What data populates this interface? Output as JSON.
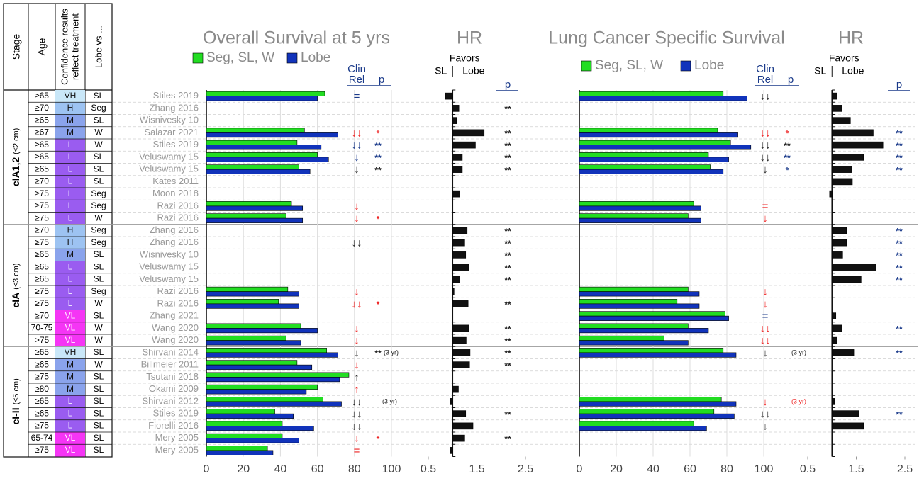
{
  "table": {
    "headers": {
      "stage": "Stage",
      "age": "Age",
      "confidence": [
        "Confidence results",
        "reflect treatment"
      ],
      "lobe_vs": "Lobe vs ..."
    },
    "confidence_colors": {
      "VH": "#c9e7f8",
      "H": "#9dc3f2",
      "M": "#8aa3ec",
      "L": "#9a5cf0",
      "VL": "#f535f5"
    },
    "confidence_text_colors": {
      "VH": "#111",
      "H": "#111",
      "M": "#111",
      "L": "#f4f0ff",
      "VL": "#fff0ff"
    },
    "stages": [
      {
        "label": "cIA1,2",
        "note": "(≤2 cm)",
        "rows": [
          [
            "≥65",
            "VH",
            "SL"
          ],
          [
            "≥70",
            "H",
            "Seg"
          ],
          [
            "≥65",
            "M",
            "SL"
          ],
          [
            "≥67",
            "M",
            "W"
          ],
          [
            "≥65",
            "L",
            "W"
          ],
          [
            "≥65",
            "L",
            "SL"
          ],
          [
            "≥65",
            "L",
            "SL"
          ],
          [
            "≥70",
            "L",
            "SL"
          ],
          [
            "≥75",
            "L",
            "Seg"
          ],
          [
            "≥75",
            "L",
            "Seg"
          ],
          [
            "≥75",
            "L",
            "W"
          ]
        ]
      },
      {
        "label": "cIA",
        "note": "(≤3 cm)",
        "rows": [
          [
            "≥70",
            "H",
            "Seg"
          ],
          [
            "≥75",
            "H",
            "Seg"
          ],
          [
            "≥65",
            "M",
            "SL"
          ],
          [
            "≥65",
            "L",
            "SL"
          ],
          [
            "≥65",
            "L",
            "SL"
          ],
          [
            "≥75",
            "L",
            "Seg"
          ],
          [
            "≥75",
            "L",
            "W"
          ],
          [
            "≥70",
            "VL",
            "SL"
          ],
          [
            "70-75",
            "VL",
            "W"
          ],
          [
            ">75",
            "VL",
            "W"
          ]
        ]
      },
      {
        "label": "cI-II",
        "note": "(≤5 cm)",
        "rows": [
          [
            "≥65",
            "VH",
            "SL"
          ],
          [
            "≥65",
            "M",
            "W"
          ],
          [
            "≥75",
            "M",
            "SL"
          ],
          [
            "≥80",
            "M",
            "SL"
          ],
          [
            "≥65",
            "L",
            "SL"
          ],
          [
            "≥65",
            "L",
            "SL"
          ],
          [
            "≥75",
            "L",
            "SL"
          ],
          [
            "65-74",
            "VL",
            "SL"
          ],
          [
            "≥75",
            "VL",
            "SL"
          ]
        ]
      }
    ]
  },
  "chart_data": [
    {
      "type": "bar",
      "title": "Overall Survival at 5 yrs",
      "legend": true,
      "grid": true,
      "categories": [
        "Stiles 2019",
        "Zhang 2016",
        "Wisnivesky 10",
        "Salazar 2021",
        "Stiles 2019",
        "Veluswamy 15",
        "Veluswamy 15",
        "Kates 2011",
        "Moon 2018",
        "Razi 2016",
        "Razi 2016",
        "Zhang 2016",
        "Zhang 2016",
        "Wisnivesky 10",
        "Veluswamy 15",
        "Veluswamy 15",
        "Razi 2016",
        "Razi 2016",
        "Zhang 2021",
        "Wang 2020",
        "Wang 2020",
        "Shirvani 2014",
        "Billmeier 2011",
        "Tsutani 2018",
        "Okami 2009",
        "Shirvani 2012",
        "Stiles 2019",
        "Fiorelli 2016",
        "Mery 2005",
        "Mery 2005"
      ],
      "series": [
        {
          "name": "Seg, SL, W",
          "color": "#22dd22",
          "values": [
            64,
            null,
            null,
            53,
            49,
            60,
            50,
            null,
            null,
            46,
            43,
            null,
            null,
            null,
            null,
            null,
            44,
            39,
            null,
            51,
            43,
            65,
            49,
            77,
            60,
            63,
            37,
            41,
            41,
            33
          ]
        },
        {
          "name": "Lobe",
          "color": "#1133bb",
          "values": [
            60,
            null,
            null,
            71,
            62,
            66,
            56,
            null,
            null,
            52,
            52,
            null,
            null,
            null,
            null,
            null,
            50,
            50,
            null,
            60,
            51,
            71,
            57,
            72,
            54,
            73,
            47,
            58,
            50,
            36
          ]
        }
      ],
      "xlim": [
        0,
        100
      ],
      "xticks": [
        0,
        20,
        40,
        60,
        80,
        100
      ],
      "clin_header": [
        "Clin",
        "Rel"
      ],
      "p_header": "p",
      "clin_rel": [
        {
          "text": "=",
          "color": "#1a3a8a"
        },
        null,
        null,
        {
          "text": "↓↓",
          "color": "#ee2222"
        },
        {
          "text": "↓↓",
          "color": "#1a3a8a"
        },
        {
          "text": "↓",
          "color": "#1a3a8a"
        },
        {
          "text": "↓",
          "color": "#222222"
        },
        null,
        null,
        {
          "text": "↓",
          "color": "#ee2222"
        },
        {
          "text": "↓",
          "color": "#ee2222"
        },
        null,
        {
          "text": "↓↓",
          "color": "#222222"
        },
        null,
        null,
        null,
        {
          "text": "↓",
          "color": "#ee2222"
        },
        {
          "text": "↓↓",
          "color": "#ee2222"
        },
        null,
        {
          "text": "↓",
          "color": "#ee2222"
        },
        {
          "text": "↓",
          "color": "#ee2222"
        },
        {
          "text": "↓",
          "color": "#222222"
        },
        {
          "text": "↓",
          "color": "#ee2222"
        },
        {
          "text": "↑",
          "color": "#222222"
        },
        {
          "text": "↑",
          "color": "#ee2222"
        },
        {
          "text": "↓↓",
          "color": "#222222"
        },
        {
          "text": "↓↓",
          "color": "#222222"
        },
        {
          "text": "↓↓",
          "color": "#222222"
        },
        {
          "text": "↓",
          "color": "#ee2222"
        },
        {
          "text": "=",
          "color": "#ee2222"
        }
      ],
      "p": [
        null,
        null,
        null,
        {
          "text": "*",
          "color": "#ee2222"
        },
        {
          "text": "**",
          "color": "#1a3a8a"
        },
        {
          "text": "**",
          "color": "#1a3a8a"
        },
        {
          "text": "**",
          "color": "#222222"
        },
        null,
        null,
        null,
        {
          "text": "*",
          "color": "#ee2222"
        },
        null,
        null,
        null,
        null,
        null,
        null,
        {
          "text": "*",
          "color": "#ee2222"
        },
        null,
        null,
        null,
        {
          "text": "**",
          "note": "(3 yr)",
          "color": "#222222"
        },
        null,
        null,
        null,
        {
          "note": "(3 yr)",
          "color": "#222222"
        },
        null,
        null,
        {
          "text": "*",
          "color": "#ee2222"
        },
        null
      ]
    },
    {
      "type": "bar",
      "title": "HR",
      "reference": 1,
      "grid": false,
      "favors": {
        "title": "Favors",
        "left": "SL",
        "right": "Lobe"
      },
      "series": [
        {
          "color": "#111111",
          "values": [
            0.85,
            1.13,
            1.08,
            1.65,
            1.47,
            1.2,
            1.2,
            null,
            1.15,
            null,
            null,
            1.3,
            1.25,
            1.27,
            1.33,
            1.15,
            1.03,
            1.32,
            null,
            1.33,
            1.28,
            1.36,
            1.35,
            null,
            1.12,
            0.95,
            1.27,
            1.42,
            1.25,
            0.95
          ]
        }
      ],
      "xlim": [
        0.5,
        2.5
      ],
      "xticks": [
        0.5,
        1.5,
        2.5
      ],
      "p_header": "p",
      "p_color": "#222222",
      "p": [
        null,
        "**",
        null,
        "**",
        "**",
        "**",
        "**",
        null,
        null,
        null,
        null,
        "**",
        "**",
        "**",
        "**",
        "**",
        null,
        "**",
        null,
        "**",
        "**",
        "**",
        "**",
        null,
        null,
        null,
        "**",
        null,
        "**",
        null
      ]
    },
    {
      "type": "bar",
      "title": "Lung Cancer Specific Survival",
      "legend": true,
      "grid": true,
      "series": [
        {
          "name": "Seg, SL, W",
          "color": "#22dd22",
          "values": [
            78,
            null,
            null,
            75,
            82,
            70,
            71,
            null,
            null,
            62,
            59,
            null,
            null,
            null,
            null,
            null,
            59,
            53,
            79,
            59,
            46,
            78,
            null,
            null,
            null,
            77,
            73,
            62,
            null,
            null
          ]
        },
        {
          "name": "Lobe",
          "color": "#1133bb",
          "values": [
            91,
            null,
            null,
            86,
            93,
            81,
            78,
            null,
            null,
            66,
            66,
            null,
            null,
            null,
            null,
            null,
            65,
            65,
            81,
            70,
            59,
            85,
            null,
            null,
            null,
            85,
            84,
            69,
            null,
            null
          ]
        }
      ],
      "xlim": [
        0,
        100
      ],
      "xticks": [
        0,
        20,
        40,
        60,
        80,
        100
      ],
      "clin_header": [
        "Clin",
        "Rel"
      ],
      "p_header": "p",
      "clin_rel": [
        {
          "text": "↓↓",
          "color": "#222222"
        },
        null,
        null,
        {
          "text": "↓↓",
          "color": "#ee2222"
        },
        {
          "text": "↓↓",
          "color": "#222222"
        },
        {
          "text": "↓↓",
          "color": "#222222"
        },
        {
          "text": "↓",
          "color": "#222222"
        },
        null,
        null,
        {
          "text": "=",
          "color": "#ee2222"
        },
        {
          "text": "↓",
          "color": "#ee2222"
        },
        null,
        null,
        null,
        null,
        null,
        {
          "text": "↓",
          "color": "#ee2222"
        },
        {
          "text": "↓",
          "color": "#ee2222"
        },
        {
          "text": "=",
          "color": "#1a3a8a"
        },
        {
          "text": "↓↓",
          "color": "#ee2222"
        },
        {
          "text": "↓↓",
          "color": "#ee2222"
        },
        {
          "text": "↓",
          "color": "#222222"
        },
        null,
        null,
        null,
        {
          "text": "↓",
          "color": "#ee2222"
        },
        {
          "text": "↓↓",
          "color": "#222222"
        },
        {
          "text": "↓",
          "color": "#222222"
        },
        null,
        null
      ],
      "p": [
        null,
        null,
        null,
        {
          "text": "*",
          "color": "#ee2222"
        },
        {
          "text": "**",
          "color": "#222222"
        },
        {
          "text": "**",
          "color": "#1a3a8a"
        },
        {
          "text": "*",
          "color": "#1a3a8a"
        },
        null,
        null,
        null,
        null,
        null,
        null,
        null,
        null,
        null,
        null,
        null,
        null,
        null,
        null,
        {
          "note": "(3 yr)",
          "color": "#222222"
        },
        null,
        null,
        null,
        {
          "note": "(3 yr)",
          "color": "#ee2222"
        },
        null,
        null,
        null,
        null
      ]
    },
    {
      "type": "bar",
      "title": "HR",
      "reference": 1,
      "grid": false,
      "favors": {
        "title": "Favors",
        "left": "SL",
        "right": "Lobe"
      },
      "series": [
        {
          "color": "#111111",
          "values": [
            1.1,
            1.2,
            1.38,
            1.85,
            2.05,
            1.65,
            1.4,
            1.42,
            0.95,
            null,
            null,
            1.3,
            1.3,
            1.22,
            1.9,
            1.6,
            null,
            null,
            1.08,
            1.2,
            1.1,
            1.45,
            null,
            null,
            null,
            1.05,
            1.55,
            1.65,
            null,
            null
          ]
        }
      ],
      "xlim": [
        0.5,
        2.5
      ],
      "xticks": [
        0.5,
        1.5,
        2.5
      ],
      "p_header": "p",
      "p_color": "#1a3a8a",
      "p": [
        null,
        null,
        null,
        "**",
        "**",
        "**",
        "**",
        null,
        null,
        null,
        null,
        "**",
        "**",
        "**",
        "**",
        "**",
        null,
        null,
        null,
        "**",
        null,
        "**",
        null,
        null,
        null,
        null,
        "**",
        null,
        null,
        null
      ]
    }
  ]
}
